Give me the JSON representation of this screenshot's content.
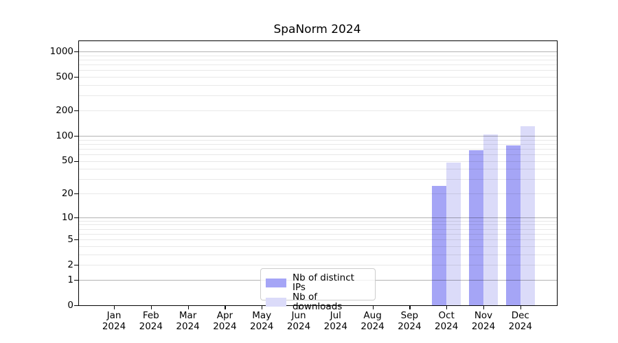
{
  "chart_data": {
    "type": "bar",
    "title": "SpaNorm 2024",
    "categories": [
      "Jan 2024",
      "Feb 2024",
      "Mar 2024",
      "Apr 2024",
      "May 2024",
      "Jun 2024",
      "Jul 2024",
      "Aug 2024",
      "Sep 2024",
      "Oct 2024",
      "Nov 2024",
      "Dec 2024"
    ],
    "series": [
      {
        "name": "Nb of distinct IPs",
        "color": "#a5a5f6",
        "values": [
          0,
          0,
          0,
          0,
          0,
          0,
          0,
          0,
          0,
          25,
          67,
          77
        ]
      },
      {
        "name": "Nb of downloads",
        "color": "#dbdbf9",
        "values": [
          0,
          0,
          0,
          0,
          0,
          0,
          0,
          0,
          0,
          48,
          104,
          129
        ]
      }
    ],
    "yticks": [
      0,
      1,
      2,
      5,
      10,
      20,
      50,
      100,
      200,
      500,
      1000
    ],
    "scale": "log10(1+x)",
    "ylim": [
      0,
      1200
    ],
    "grid": "horizontal minor+major, majors at powers of 10, drawn over bars",
    "legend_position": "bottom-center",
    "xlabel": "",
    "ylabel": ""
  },
  "colors": {
    "axis": "#000000",
    "major_grid": "rgba(0,0,0,0.30)",
    "minor_grid": "rgba(0,0,0,0.09)",
    "legend_border": "#cccccc",
    "background": "#ffffff"
  }
}
